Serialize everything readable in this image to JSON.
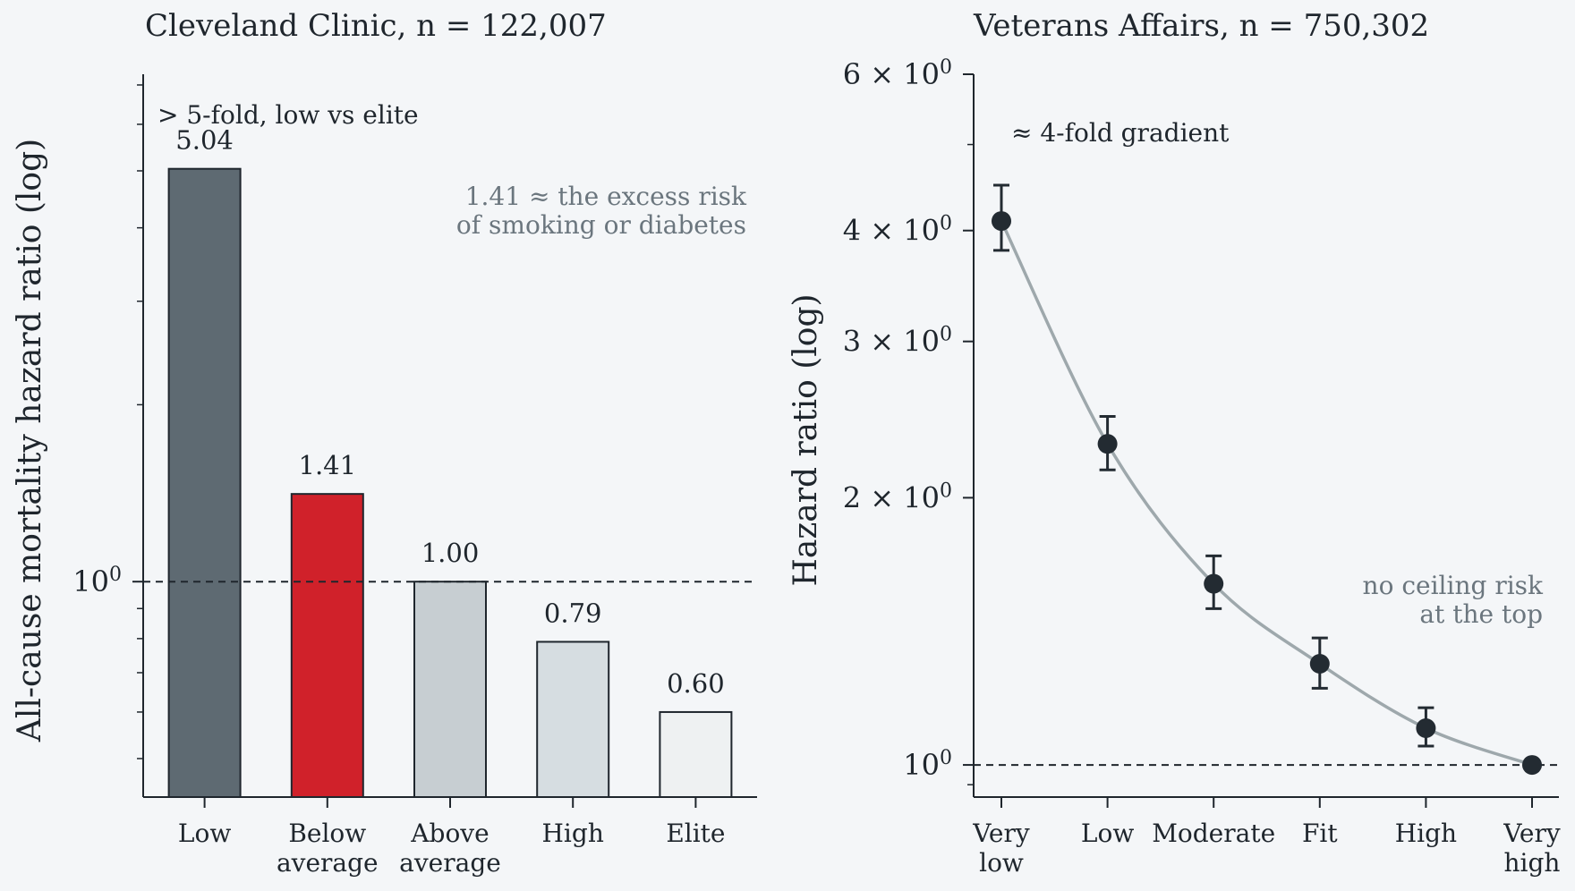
{
  "chart_data": [
    {
      "type": "bar",
      "title": "Cleveland Clinic, n = 122,007",
      "ylabel": "All-cause mortality hazard ratio (log)",
      "yscale": "log",
      "ylim": [
        0.43,
        7.3
      ],
      "categories": [
        [
          "Low"
        ],
        [
          "Below",
          "average"
        ],
        [
          "Above",
          "average"
        ],
        [
          "High"
        ],
        [
          "Elite"
        ]
      ],
      "values": [
        5.04,
        1.41,
        1.0,
        0.79,
        0.6
      ],
      "value_labels": [
        "5.04",
        "1.41",
        "1.00",
        "0.79",
        "0.60"
      ],
      "bar_colors": [
        "#5e6a72",
        "#d0212a",
        "#c7ced2",
        "#d6dde1",
        "#eef1f2"
      ],
      "reference_line": 1.0,
      "yticks": [
        {
          "value": 1.0,
          "label": "10",
          "exp": "0"
        }
      ],
      "annotations": [
        {
          "text": "> 5-fold, low vs elite",
          "style": "dark"
        },
        {
          "lines": [
            "1.41 ≈ the excess risk",
            "of smoking or diabetes"
          ],
          "style": "gray"
        }
      ]
    },
    {
      "type": "line",
      "title": "Veterans Affairs, n = 750,302",
      "ylabel": "Hazard ratio (log)",
      "yscale": "log",
      "ylim": [
        0.92,
        6.0
      ],
      "categories": [
        [
          "Very",
          "low"
        ],
        [
          "Low"
        ],
        [
          "Moderate"
        ],
        [
          "Fit"
        ],
        [
          "High"
        ],
        [
          "Very",
          "high"
        ]
      ],
      "values": [
        4.1,
        2.3,
        1.6,
        1.3,
        1.1,
        1.0
      ],
      "error_low": [
        3.8,
        2.15,
        1.5,
        1.22,
        1.05,
        1.0
      ],
      "error_high": [
        4.5,
        2.47,
        1.72,
        1.39,
        1.16,
        1.0
      ],
      "line_color": "#9ea8ac",
      "marker_color": "#232b32",
      "reference_line": 1.0,
      "yticks": [
        {
          "value": 6,
          "label": "6 × 10",
          "exp": "0"
        },
        {
          "value": 4,
          "label": "4 × 10",
          "exp": "0"
        },
        {
          "value": 3,
          "label": "3 × 10",
          "exp": "0"
        },
        {
          "value": 2,
          "label": "2 × 10",
          "exp": "0"
        },
        {
          "value": 1,
          "label": "10",
          "exp": "0"
        }
      ],
      "minor_yticks": [
        5,
        0.95
      ],
      "annotations": [
        {
          "text": "≈ 4-fold gradient",
          "style": "dark"
        },
        {
          "lines": [
            "no ceiling risk",
            "at the top"
          ],
          "style": "gray"
        }
      ]
    }
  ]
}
